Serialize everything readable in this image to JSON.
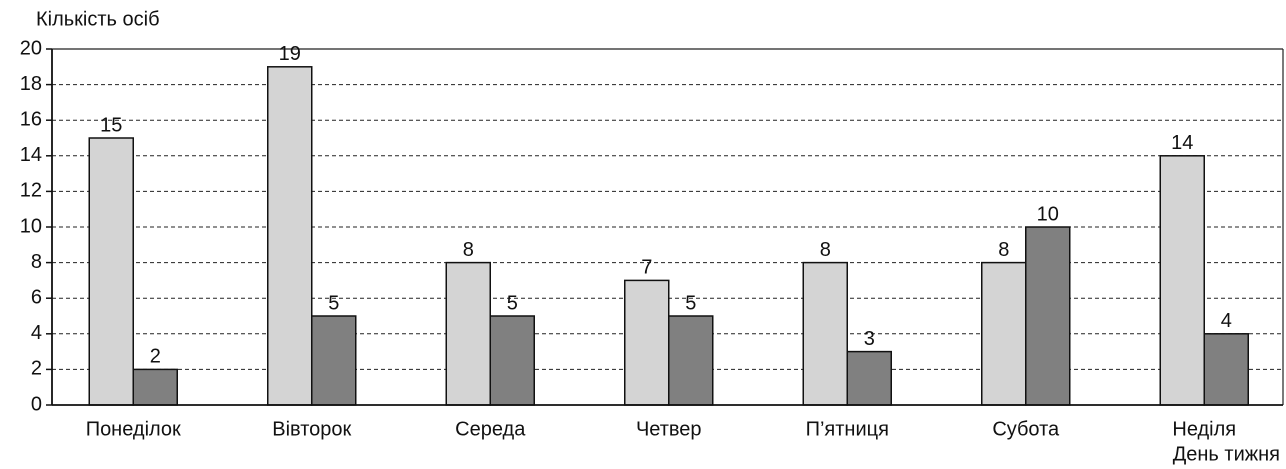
{
  "chart_data": {
    "type": "bar",
    "y_label": "Кількість осіб",
    "x_label": "День тижня",
    "categories": [
      "Понеділок",
      "Вівторок",
      "Середа",
      "Четвер",
      "П’ятниця",
      "Субота",
      "Неділя"
    ],
    "series": [
      {
        "color": "#d4d4d4",
        "values": [
          15,
          19,
          8,
          7,
          8,
          8,
          14
        ]
      },
      {
        "color": "#808080",
        "values": [
          2,
          5,
          5,
          5,
          3,
          10,
          4
        ]
      }
    ],
    "ylim": [
      0,
      20
    ],
    "yticks": [
      0,
      2,
      4,
      6,
      8,
      10,
      12,
      14,
      16,
      18,
      20
    ],
    "grid": true
  }
}
